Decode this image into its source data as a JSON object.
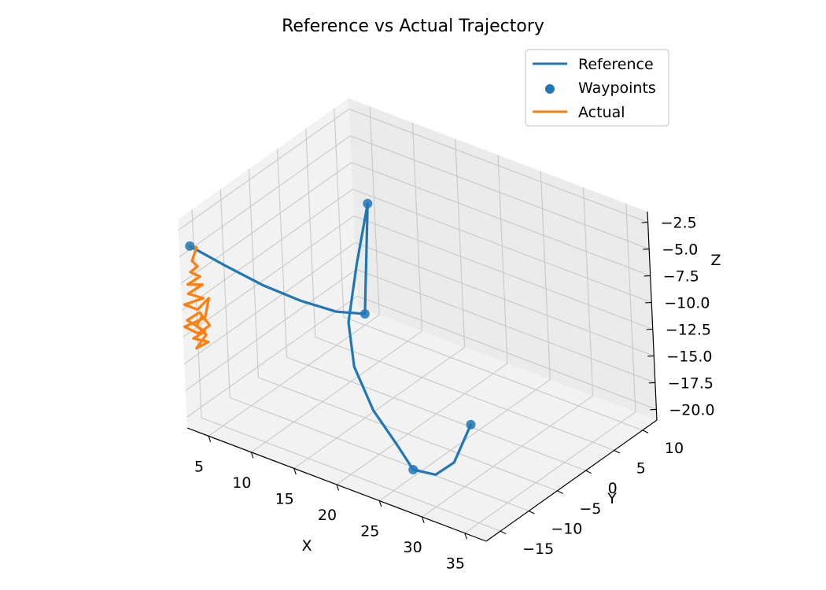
{
  "chart_data": {
    "type": "line3d",
    "title": "Reference vs Actual Trajectory",
    "xlabel": "X",
    "ylabel": "Y",
    "zlabel": "Z",
    "xlim": [
      2.5,
      37.5
    ],
    "ylim": [
      -17.5,
      12.5
    ],
    "zlim": [
      -21.0,
      -1.5
    ],
    "xticks": [
      5,
      10,
      15,
      20,
      25,
      30,
      35
    ],
    "yticks": [
      -15,
      -10,
      -5,
      0,
      5,
      10
    ],
    "zticks": [
      -20.0,
      -17.5,
      -15.0,
      -12.5,
      -10.0,
      -7.5,
      -5.0,
      -2.5
    ],
    "xtick_labels": [
      "5",
      "10",
      "15",
      "20",
      "25",
      "30",
      "35"
    ],
    "ytick_labels": [
      "−15",
      "−10",
      "−5",
      "0",
      "5",
      "10"
    ],
    "ztick_labels": [
      "−20.0",
      "−17.5",
      "−15.0",
      "−12.5",
      "−10.0",
      "−7.5",
      "−5.0",
      "−2.5"
    ],
    "grid": true,
    "legend_position": "top-right",
    "series": [
      {
        "name": "Reference",
        "kind": "line",
        "color": "#1f77b4",
        "points": [
          [
            2.6,
            -15.8,
            -4.6
          ],
          [
            4.8,
            -13.5,
            -6.5
          ],
          [
            7.6,
            -10.7,
            -8.7
          ],
          [
            10.1,
            -8.0,
            -10.4
          ],
          [
            12.3,
            -5.2,
            -11.8
          ],
          [
            14.0,
            -2.8,
            -12.4
          ],
          [
            10.3,
            3.8,
            -5.7
          ],
          [
            11.6,
            -0.4,
            -9.4
          ],
          [
            13.4,
            -4.8,
            -12.6
          ],
          [
            16.0,
            -7.9,
            -14.8
          ],
          [
            19.8,
            -10.4,
            -16.8
          ],
          [
            23.6,
            -12.1,
            -18.2
          ],
          [
            26.6,
            -13.8,
            -19.0
          ],
          [
            29.8,
            -14.6,
            -18.2
          ],
          [
            31.8,
            -14.2,
            -16.6
          ],
          [
            32.8,
            -12.5,
            -13.4
          ]
        ]
      },
      {
        "name": "Waypoints",
        "kind": "scatter",
        "color": "#1f77b4",
        "points": [
          [
            2.6,
            -15.8,
            -4.6
          ],
          [
            10.3,
            3.8,
            -5.7
          ],
          [
            14.0,
            -2.8,
            -12.4
          ],
          [
            26.6,
            -13.8,
            -19.0
          ],
          [
            32.8,
            -12.5,
            -13.4
          ]
        ]
      },
      {
        "name": "Actual",
        "kind": "line",
        "color": "#ff7f0e",
        "points": [
          [
            2.6,
            -15.8,
            -4.6
          ],
          [
            2.9,
            -15.1,
            -4.9
          ],
          [
            2.7,
            -15.7,
            -6.0
          ],
          [
            3.0,
            -15.2,
            -6.6
          ],
          [
            2.6,
            -15.9,
            -7.0
          ],
          [
            3.1,
            -15.0,
            -7.6
          ],
          [
            2.4,
            -16.2,
            -8.1
          ],
          [
            3.2,
            -14.8,
            -8.4
          ],
          [
            2.5,
            -16.3,
            -8.9
          ],
          [
            3.3,
            -14.9,
            -9.6
          ],
          [
            2.2,
            -16.6,
            -9.9
          ],
          [
            2.9,
            -15.4,
            -10.6
          ],
          [
            3.6,
            -14.4,
            -9.7
          ],
          [
            3.4,
            -14.9,
            -11.4
          ],
          [
            2.1,
            -16.6,
            -12.0
          ],
          [
            2.8,
            -15.3,
            -12.9
          ],
          [
            3.5,
            -14.3,
            -12.3
          ],
          [
            3.0,
            -15.2,
            -10.9
          ],
          [
            2.3,
            -16.4,
            -11.4
          ],
          [
            3.2,
            -14.7,
            -12.8
          ],
          [
            2.6,
            -15.9,
            -13.2
          ],
          [
            3.4,
            -14.5,
            -13.8
          ],
          [
            2.7,
            -15.6,
            -14.2
          ],
          [
            3.3,
            -14.7,
            -13.1
          ],
          [
            2.8,
            -15.5,
            -12.1
          ],
          [
            3.1,
            -15.0,
            -11.3
          ]
        ]
      }
    ]
  }
}
